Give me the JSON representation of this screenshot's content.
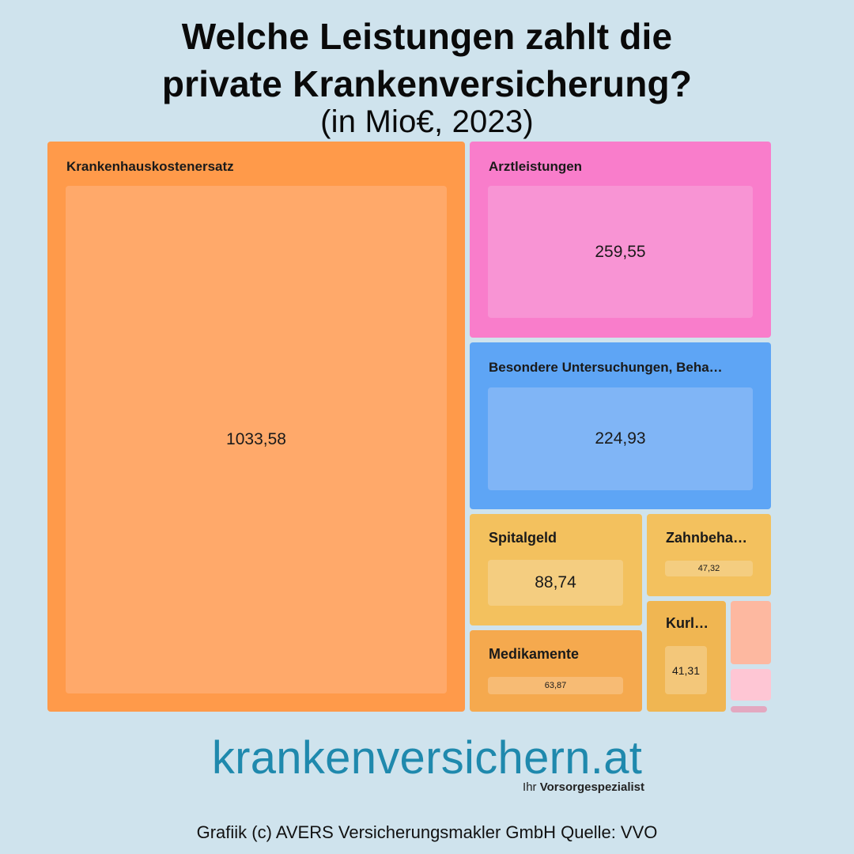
{
  "title_line1": "Welche Leistungen zahlt die",
  "title_line2": "private Krankenversicherung?",
  "subtitle": "(in Mio€, 2023)",
  "chart_data": {
    "type": "treemap",
    "unit": "Mio€",
    "items": [
      {
        "name": "Krankenhauskostenersatz",
        "label": "Krankenhauskostenersatz",
        "value": 1033.58,
        "value_label": "1033,58",
        "color": "#ff9a4a",
        "inner_color": "#ffa96a"
      },
      {
        "name": "Arztleistungen",
        "label": "Arztleistungen",
        "value": 259.55,
        "value_label": "259,55",
        "color": "#f97dcb",
        "inner_color": "#f894d4"
      },
      {
        "name": "Besondere Untersuchungen, Beha…",
        "label": "Besondere Untersuchungen, Beha…",
        "value": 224.93,
        "value_label": "224,93",
        "color": "#5ea5f5",
        "inner_color": "#80b5f6"
      },
      {
        "name": "Spitalgeld",
        "label": "Spitalgeld",
        "value": 88.74,
        "value_label": "88,74",
        "color": "#f3c15e",
        "inner_color": "#f4cd80"
      },
      {
        "name": "Medikamente",
        "label": "Medikamente",
        "value": 63.87,
        "value_label": "63,87",
        "color": "#f5a94e",
        "inner_color": "#f7bb74"
      },
      {
        "name": "Zahnbeha…",
        "label": "Zahnbeha…",
        "value": 47.32,
        "value_label": "47,32",
        "color": "#f3c15e",
        "inner_color": "#f4cd80"
      },
      {
        "name": "Kurl…",
        "label": "Kurl…",
        "value": 41.31,
        "value_label": "41,31",
        "color": "#f0b652",
        "inner_color": "#f3c77a"
      },
      {
        "name": "",
        "label": "",
        "value_label": "",
        "color": "#fdb8a0",
        "inner_color": ""
      },
      {
        "name": "",
        "label": "",
        "value_label": "",
        "color": "#fec6d4",
        "inner_color": ""
      },
      {
        "name": "",
        "label": "",
        "value_label": "",
        "color": "#e3a8c0",
        "inner_color": ""
      }
    ]
  },
  "brand": "krankenversichern.at",
  "tagline_prefix": "Ihr",
  "tagline_bold": "Vorsorgespezialist",
  "footer": "Grafiik (c) AVERS Versicherungsmakler GmbH Quelle: VVO"
}
